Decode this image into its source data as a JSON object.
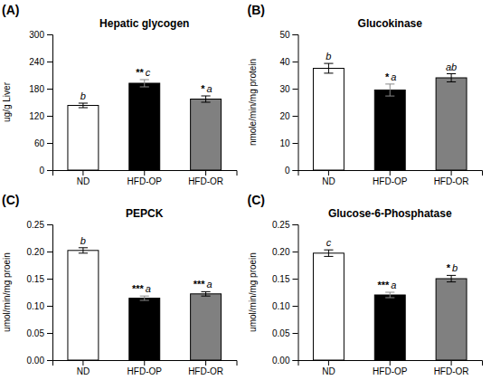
{
  "chart_data": [
    {
      "type": "bar",
      "panel_label": "(A)",
      "title": "Hepatic glycogen",
      "ylabel": "ug/g Liver",
      "categories": [
        "ND",
        "HFD-OP",
        "HFD-OR"
      ],
      "values": [
        143,
        192,
        157
      ],
      "errors": [
        5,
        8,
        7
      ],
      "colors": [
        "white",
        "black",
        "#808080"
      ],
      "ylim": [
        0,
        300
      ],
      "yticks": [
        0,
        60,
        120,
        180,
        240,
        300
      ],
      "stars": [
        null,
        "**",
        "*"
      ],
      "letters": [
        "b",
        "c",
        "a"
      ]
    },
    {
      "type": "bar",
      "panel_label": "(B)",
      "title": "Glucokinase",
      "ylabel": "nmole/min/mg protein",
      "categories": [
        "ND",
        "HFD-OP",
        "HFD-OR"
      ],
      "values": [
        37.5,
        29.5,
        34.0
      ],
      "errors": [
        1.8,
        2.2,
        1.5
      ],
      "colors": [
        "white",
        "black",
        "#808080"
      ],
      "ylim": [
        0,
        50
      ],
      "yticks": [
        0,
        10,
        20,
        30,
        40,
        50
      ],
      "stars": [
        null,
        "*",
        null
      ],
      "letters": [
        "b",
        "a",
        "ab"
      ]
    },
    {
      "type": "bar",
      "panel_label": "(C)",
      "title": "PEPCK",
      "ylabel": "umol/min/mg proein",
      "categories": [
        "ND",
        "HFD-OP",
        "HFD-OR"
      ],
      "values": [
        0.202,
        0.114,
        0.122
      ],
      "errors": [
        0.005,
        0.004,
        0.004
      ],
      "colors": [
        "white",
        "black",
        "#808080"
      ],
      "ylim": [
        0,
        0.25
      ],
      "yticks": [
        {
          "value": 0,
          "label": "0.00"
        },
        0.05,
        {
          "value": 0.1,
          "label": "0.10"
        },
        0.15,
        {
          "value": 0.2,
          "label": "0.20"
        },
        0.25
      ],
      "stars": [
        null,
        "***",
        "***"
      ],
      "letters": [
        "b",
        "a",
        "a"
      ]
    },
    {
      "type": "bar",
      "panel_label": "(C)",
      "title": "Glucose-6-Phosphatase",
      "ylabel": "umol/min/mg proein",
      "categories": [
        "ND",
        "HFD-OP",
        "HFD-OR"
      ],
      "values": [
        0.197,
        0.12,
        0.15
      ],
      "errors": [
        0.006,
        0.005,
        0.006
      ],
      "colors": [
        "white",
        "black",
        "#808080"
      ],
      "ylim": [
        0,
        0.25
      ],
      "yticks": [
        {
          "value": 0,
          "label": "0.00"
        },
        0.05,
        {
          "value": 0.1,
          "label": "0.10"
        },
        0.15,
        {
          "value": 0.2,
          "label": "0.20"
        },
        0.25
      ],
      "stars": [
        null,
        "***",
        "*"
      ],
      "letters": [
        "c",
        "a",
        "b"
      ]
    }
  ]
}
